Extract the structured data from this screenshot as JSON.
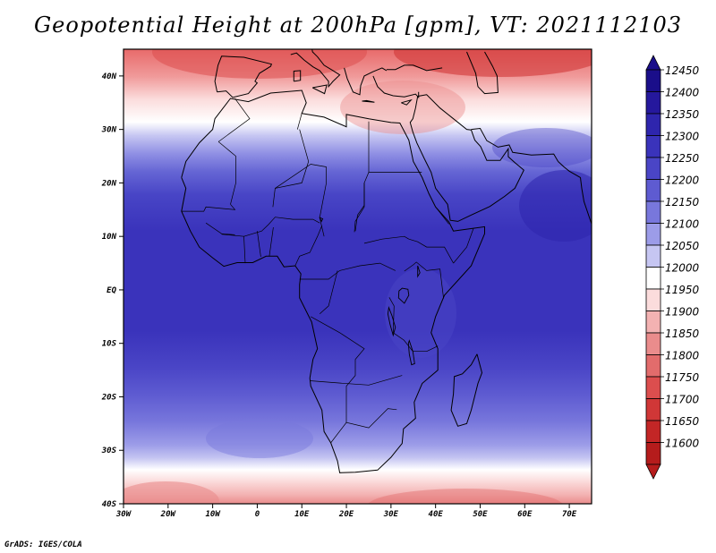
{
  "title": "Geopotential Height at 200hPa [gpm], VT: 2021112103",
  "footer": "GrADS: IGES/COLA",
  "map": {
    "region": "Africa",
    "lon_range": [
      -30,
      75
    ],
    "lat_range": [
      -40,
      45
    ],
    "lat_labels": [
      {
        "lat": 40,
        "text": "40N"
      },
      {
        "lat": 30,
        "text": "30N"
      },
      {
        "lat": 20,
        "text": "20N"
      },
      {
        "lat": 10,
        "text": "10N"
      },
      {
        "lat": 0,
        "text": "EQ"
      },
      {
        "lat": -10,
        "text": "10S"
      },
      {
        "lat": -20,
        "text": "20S"
      },
      {
        "lat": -30,
        "text": "30S"
      },
      {
        "lat": -40,
        "text": "40S"
      }
    ],
    "lon_labels": [
      {
        "lon": -30,
        "text": "30W"
      },
      {
        "lon": -20,
        "text": "20W"
      },
      {
        "lon": -10,
        "text": "10W"
      },
      {
        "lon": 0,
        "text": "0"
      },
      {
        "lon": 10,
        "text": "10E"
      },
      {
        "lon": 20,
        "text": "20E"
      },
      {
        "lon": 30,
        "text": "30E"
      },
      {
        "lon": 40,
        "text": "40E"
      },
      {
        "lon": 50,
        "text": "50E"
      },
      {
        "lon": 60,
        "text": "60E"
      },
      {
        "lon": 70,
        "text": "70E"
      }
    ]
  },
  "colorbar": {
    "levels": [
      {
        "label": "12450",
        "color": "#1a0e8a"
      },
      {
        "label": "12400",
        "color": "#25189d"
      },
      {
        "label": "12350",
        "color": "#2e25ad"
      },
      {
        "label": "12300",
        "color": "#3a33bb"
      },
      {
        "label": "12250",
        "color": "#4a45c6"
      },
      {
        "label": "12200",
        "color": "#5e5bd1"
      },
      {
        "label": "12150",
        "color": "#7877dc"
      },
      {
        "label": "12100",
        "color": "#9c9ce8"
      },
      {
        "label": "12050",
        "color": "#c6c6f2"
      },
      {
        "label": "12000",
        "color": "#ffffff"
      },
      {
        "label": "11950",
        "color": "#fbdcdc"
      },
      {
        "label": "11900",
        "color": "#f3b2b2"
      },
      {
        "label": "11850",
        "color": "#ea8c8c"
      },
      {
        "label": "11800",
        "color": "#e26c6c"
      },
      {
        "label": "11750",
        "color": "#dc4e4e"
      },
      {
        "label": "11700",
        "color": "#d03737"
      },
      {
        "label": "11650",
        "color": "#c32626"
      },
      {
        "label": "11600",
        "color": "#b51c1c"
      }
    ]
  }
}
